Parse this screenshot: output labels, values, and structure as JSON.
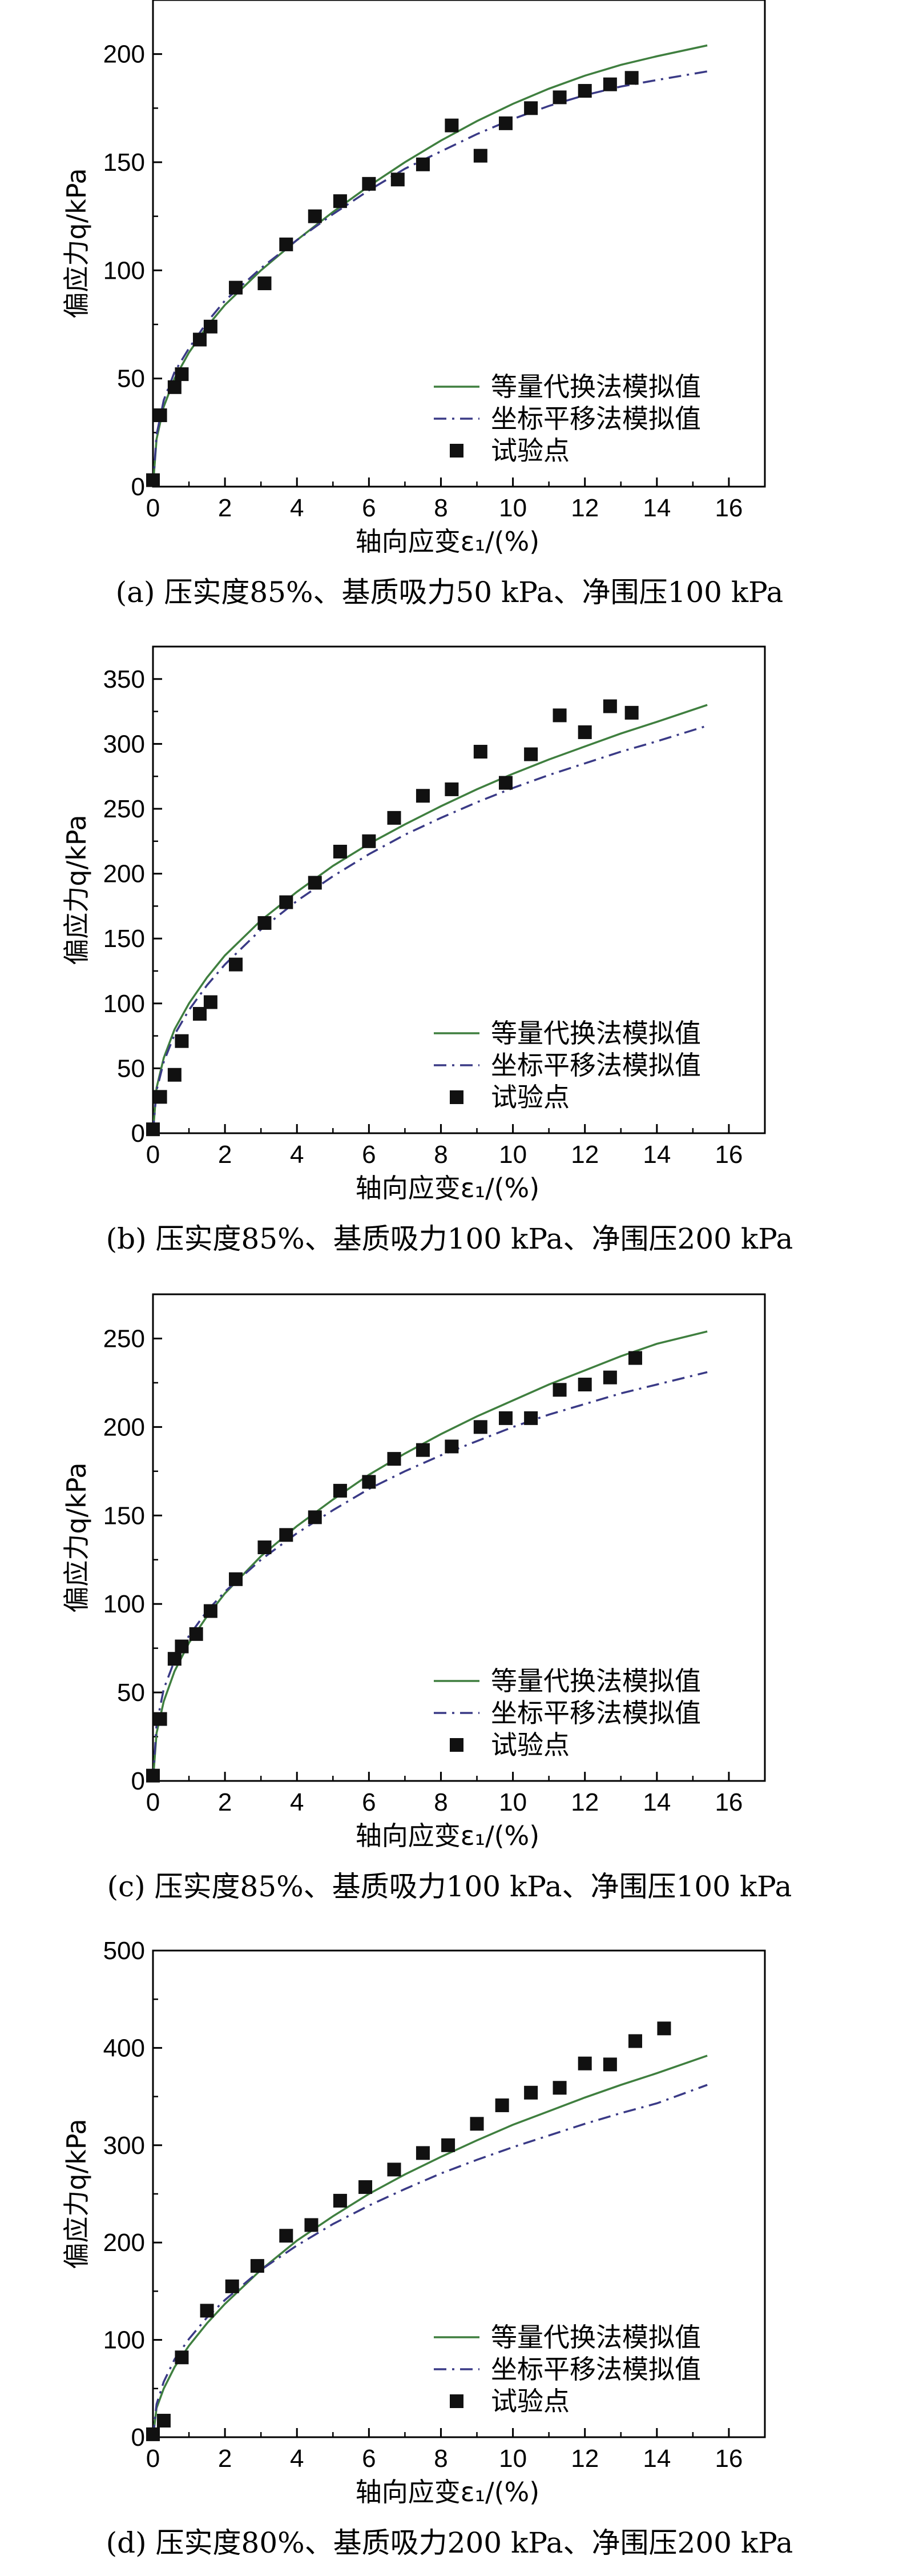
{
  "chart_data": [
    {
      "type": "line",
      "caption": "(a) 压实度85%、基质吸力50 kPa、净围压100 kPa",
      "xlabel": "轴向应变ε₁/(%)",
      "ylabel": "偏应力q/kPa",
      "xlim": [
        0,
        17
      ],
      "ylim": [
        0,
        225
      ],
      "xticks": [
        0,
        2,
        4,
        6,
        8,
        10,
        12,
        14,
        16
      ],
      "yticks": [
        0,
        50,
        100,
        150,
        200
      ],
      "legend_position": "bottom-right",
      "series": [
        {
          "name": "等量代换法模拟值",
          "style": "solid",
          "color": "#3f7f3f",
          "x": [
            0,
            0.1,
            0.3,
            0.6,
            1,
            1.5,
            2,
            3,
            4,
            5,
            6,
            7,
            8,
            9,
            10,
            11,
            12,
            13,
            14,
            15.4
          ],
          "y": [
            0,
            22,
            37,
            50,
            62,
            74,
            84,
            100,
            114,
            127,
            139,
            150,
            160,
            169,
            177,
            184,
            190,
            195,
            199,
            204
          ]
        },
        {
          "name": "坐标平移法模拟值",
          "style": "dashdot",
          "color": "#3a3a86",
          "x": [
            0,
            0.1,
            0.3,
            0.6,
            1,
            1.5,
            2,
            3,
            4,
            5,
            6,
            7,
            8,
            9,
            10,
            11,
            12,
            13,
            14,
            15.4
          ],
          "y": [
            0,
            24,
            40,
            53,
            64,
            76,
            86,
            101,
            114,
            126,
            137,
            147,
            155,
            163,
            170,
            176,
            181,
            185,
            188,
            192
          ]
        },
        {
          "name": "试验点",
          "style": "marker",
          "color": "#111111",
          "x": [
            0,
            0.2,
            0.6,
            0.8,
            1.3,
            1.6,
            2.3,
            3.1,
            3.7,
            4.5,
            5.2,
            6,
            6.8,
            7.5,
            8.3,
            9.1,
            9.8,
            10.5,
            11.3,
            12,
            12.7,
            13.3
          ],
          "y": [
            3,
            33,
            46,
            52,
            68,
            74,
            92,
            94,
            112,
            125,
            132,
            140,
            142,
            149,
            167,
            153,
            168,
            175,
            180,
            183,
            186,
            189
          ]
        }
      ]
    },
    {
      "type": "line",
      "caption": "(b) 压实度85%、基质吸力100 kPa、净围压200 kPa",
      "xlabel": "轴向应变ε₁/(%)",
      "ylabel": "偏应力q/kPa",
      "xlim": [
        0,
        17
      ],
      "ylim": [
        0,
        375
      ],
      "xticks": [
        0,
        2,
        4,
        6,
        8,
        10,
        12,
        14,
        16
      ],
      "yticks": [
        0,
        50,
        100,
        150,
        200,
        250,
        300,
        350
      ],
      "legend_position": "bottom-right",
      "series": [
        {
          "name": "等量代换法模拟值",
          "style": "solid",
          "color": "#3f7f3f",
          "x": [
            0,
            0.1,
            0.3,
            0.6,
            1,
            1.5,
            2,
            3,
            4,
            5,
            6,
            7,
            8,
            9,
            10,
            11,
            12,
            13,
            14,
            15.4
          ],
          "y": [
            0,
            35,
            58,
            80,
            100,
            120,
            137,
            164,
            186,
            206,
            223,
            238,
            252,
            265,
            277,
            288,
            298,
            308,
            317,
            330
          ]
        },
        {
          "name": "坐标平移法模拟值",
          "style": "dashdot",
          "color": "#3a3a86",
          "x": [
            0,
            0.1,
            0.3,
            0.6,
            1,
            1.5,
            2,
            3,
            4,
            5,
            6,
            7,
            8,
            9,
            10,
            11,
            12,
            13,
            14,
            15.4
          ],
          "y": [
            0,
            33,
            55,
            76,
            95,
            114,
            130,
            157,
            179,
            198,
            215,
            230,
            243,
            255,
            266,
            276,
            285,
            294,
            302,
            314
          ]
        },
        {
          "name": "试验点",
          "style": "marker",
          "color": "#111111",
          "x": [
            0,
            0.2,
            0.6,
            0.8,
            1.3,
            1.6,
            2.3,
            3.1,
            3.7,
            4.5,
            5.2,
            6,
            6.7,
            7.5,
            8.3,
            9.1,
            9.8,
            10.5,
            11.3,
            12,
            12.7,
            13.3
          ],
          "y": [
            3,
            28,
            45,
            71,
            92,
            101,
            130,
            162,
            178,
            193,
            217,
            225,
            243,
            260,
            265,
            294,
            270,
            292,
            322,
            309,
            329,
            324
          ]
        }
      ]
    },
    {
      "type": "line",
      "caption": "(c) 压实度85%、基质吸力100 kPa、净围压100 kPa",
      "xlabel": "轴向应变ε₁/(%)",
      "ylabel": "偏应力q/kPa",
      "xlim": [
        0,
        17
      ],
      "ylim": [
        0,
        275
      ],
      "xticks": [
        0,
        2,
        4,
        6,
        8,
        10,
        12,
        14,
        16
      ],
      "yticks": [
        0,
        50,
        100,
        150,
        200,
        250
      ],
      "legend_position": "bottom-right",
      "series": [
        {
          "name": "等量代换法模拟值",
          "style": "solid",
          "color": "#3f7f3f",
          "x": [
            0,
            0.1,
            0.3,
            0.6,
            1,
            1.5,
            2,
            3,
            4,
            5,
            6,
            7,
            8,
            9,
            10,
            11,
            12,
            13,
            14,
            15.4
          ],
          "y": [
            0,
            27,
            45,
            62,
            78,
            93,
            106,
            127,
            144,
            159,
            173,
            185,
            196,
            206,
            215,
            224,
            232,
            240,
            247,
            254
          ]
        },
        {
          "name": "坐标平移法模拟值",
          "style": "dashdot",
          "color": "#3a3a86",
          "x": [
            0,
            0.1,
            0.3,
            0.6,
            1,
            1.5,
            2,
            3,
            4,
            5,
            6,
            7,
            8,
            9,
            10,
            11,
            12,
            13,
            14,
            15.4
          ],
          "y": [
            0,
            32,
            52,
            68,
            82,
            96,
            107,
            125,
            140,
            153,
            165,
            175,
            184,
            192,
            200,
            207,
            213,
            219,
            224,
            231
          ]
        },
        {
          "name": "试验点",
          "style": "marker",
          "color": "#111111",
          "x": [
            0,
            0.2,
            0.6,
            0.8,
            1.2,
            1.6,
            2.3,
            3.1,
            3.7,
            4.5,
            5.2,
            6,
            6.7,
            7.5,
            8.3,
            9.1,
            9.8,
            10.5,
            11.3,
            12,
            12.7,
            13.4
          ],
          "y": [
            3,
            35,
            69,
            76,
            83,
            96,
            114,
            132,
            139,
            149,
            164,
            169,
            182,
            187,
            189,
            200,
            205,
            205,
            221,
            224,
            228,
            239
          ]
        }
      ]
    },
    {
      "type": "line",
      "caption": "(d) 压实度80%、基质吸力200 kPa、净围压200 kPa",
      "xlabel": "轴向应变ε₁/(%)",
      "ylabel": "偏应力q/kPa",
      "xlim": [
        0,
        17
      ],
      "ylim": [
        0,
        500
      ],
      "xticks": [
        0,
        2,
        4,
        6,
        8,
        10,
        12,
        14,
        16
      ],
      "yticks": [
        0,
        100,
        200,
        300,
        400,
        500
      ],
      "legend_position": "bottom-right",
      "series": [
        {
          "name": "等量代换法模拟值",
          "style": "solid",
          "color": "#3f7f3f",
          "x": [
            0,
            0.1,
            0.3,
            0.6,
            1,
            1.5,
            2,
            3,
            4,
            5,
            6,
            7,
            8,
            9,
            10,
            11,
            12,
            13,
            14,
            15.4
          ],
          "y": [
            0,
            30,
            50,
            72,
            94,
            117,
            137,
            172,
            202,
            227,
            250,
            270,
            288,
            305,
            321,
            335,
            349,
            362,
            374,
            392
          ]
        },
        {
          "name": "坐标平移法模拟值",
          "style": "dashdot",
          "color": "#3a3a86",
          "x": [
            0,
            0.1,
            0.3,
            0.6,
            1,
            1.5,
            2,
            3,
            4,
            5,
            6,
            7,
            8,
            9,
            10,
            11,
            12,
            13,
            14,
            15.4
          ],
          "y": [
            0,
            34,
            57,
            80,
            101,
            123,
            141,
            172,
            197,
            219,
            238,
            255,
            271,
            285,
            298,
            310,
            322,
            333,
            343,
            362
          ]
        },
        {
          "name": "试验点",
          "style": "marker",
          "color": "#111111",
          "x": [
            0,
            0.3,
            0.8,
            1.5,
            2.2,
            2.9,
            3.7,
            4.4,
            5.2,
            5.9,
            6.7,
            7.5,
            8.2,
            9,
            9.7,
            10.5,
            11.3,
            12,
            12.7,
            13.4,
            14.2
          ],
          "y": [
            3,
            17,
            82,
            130,
            155,
            176,
            207,
            218,
            243,
            257,
            275,
            292,
            300,
            322,
            341,
            354,
            359,
            384,
            383,
            407,
            420
          ]
        }
      ]
    }
  ]
}
